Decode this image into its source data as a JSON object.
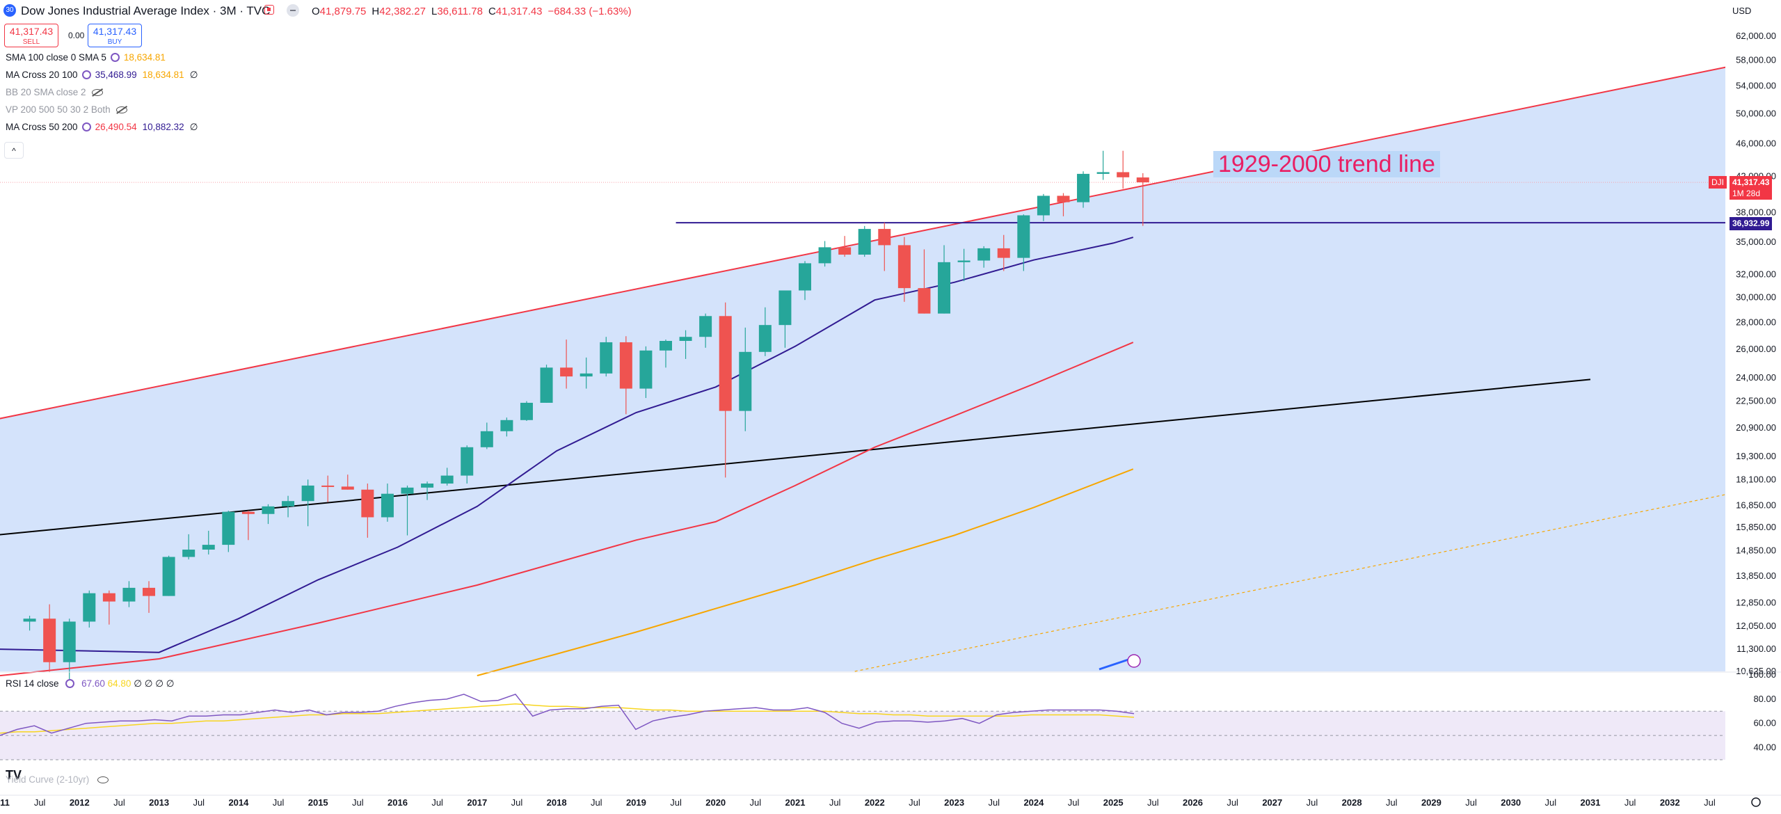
{
  "header": {
    "symbol_badge": "30",
    "title": "Dow Jones Industrial Average Index · 3M · TVC",
    "ohlc": [
      {
        "k": "O",
        "v": "41,879.75"
      },
      {
        "k": "H",
        "v": "42,382.27"
      },
      {
        "k": "L",
        "v": "36,611.78"
      },
      {
        "k": "C",
        "v": "41,317.43"
      },
      {
        "k": "",
        "v": "−684.33 (−1.63%)"
      }
    ],
    "sell_price": "41,317.43",
    "sell_label": "SELL",
    "spread": "0.00",
    "buy_price": "41,317.43",
    "buy_label": "BUY",
    "currency": "USD"
  },
  "indicators": [
    {
      "name": "SMA 100 close 0 SMA 5",
      "values": [
        {
          "v": "18,634.81",
          "c": "#f7a600"
        }
      ],
      "hidden": false
    },
    {
      "name": "MA Cross 20 100",
      "values": [
        {
          "v": "35,468.99",
          "c": "#311b92"
        },
        {
          "v": "18,634.81",
          "c": "#f7a600"
        },
        {
          "v": "∅",
          "c": "#131722"
        }
      ],
      "hidden": false
    },
    {
      "name": "BB 20 SMA close 2",
      "values": [],
      "hidden": true
    },
    {
      "name": "VP 200 500 50 30 2 Both",
      "values": [],
      "hidden": true
    },
    {
      "name": "MA Cross 50 200",
      "values": [
        {
          "v": "26,490.54",
          "c": "#f23645"
        },
        {
          "v": "10,882.32",
          "c": "#311b92"
        },
        {
          "v": "∅",
          "c": "#131722"
        }
      ],
      "hidden": false
    }
  ],
  "collapse_icon": "^",
  "rsi": {
    "label": "RSI 14 close",
    "value": "67.60",
    "ma": "64.80",
    "extra": "∅ ∅ ∅ ∅",
    "axis_labels": [
      "100.00",
      "80.00",
      "60.00",
      "40.00"
    ],
    "series": [
      50,
      55,
      58,
      52,
      56,
      60,
      61,
      62,
      62,
      63,
      62,
      66,
      66,
      67,
      67,
      69,
      71,
      69,
      71,
      67,
      69,
      69,
      70,
      74,
      77,
      79,
      80,
      84,
      78,
      79,
      84,
      66,
      71,
      72,
      72,
      74,
      75,
      55,
      62,
      65,
      67,
      70,
      71,
      72,
      73,
      71,
      71,
      73,
      69,
      60,
      56,
      61,
      62,
      62,
      61,
      62,
      64,
      60,
      67,
      69,
      70,
      71,
      71,
      71,
      71,
      70,
      68
    ],
    "ma_series": [
      52,
      53,
      53,
      54,
      55,
      56,
      57,
      58,
      59,
      60,
      60,
      61,
      62,
      62,
      63,
      64,
      65,
      66,
      67,
      67,
      68,
      68,
      68,
      69,
      70,
      71,
      72,
      73,
      74,
      75,
      76,
      75,
      74,
      74,
      73,
      73,
      73,
      72,
      71,
      71,
      70,
      70,
      70,
      70,
      70,
      70,
      70,
      70,
      70,
      69,
      68,
      68,
      67,
      67,
      66,
      66,
      66,
      66,
      66,
      66,
      67,
      67,
      67,
      67,
      67,
      66,
      65
    ]
  },
  "yield_curve_label": "Yield Curve (2-10yr)",
  "tv_logo": "TV",
  "annotation": "1929-2000 trend line",
  "price_tags": {
    "symbol": "DJI",
    "last": "41,317.43",
    "countdown": "1M 28d",
    "level": "36,932.99"
  },
  "chart_data": {
    "type": "candlestick",
    "title": "Dow Jones Industrial Average Index · 3M · TVC",
    "scale": "log",
    "yticks": [
      "62,000.00",
      "58,000.00",
      "54,000.00",
      "50,000.00",
      "46,000.00",
      "42,000.00",
      "38,000.00",
      "35,000.00",
      "32,000.00",
      "30,000.00",
      "28,000.00",
      "26,000.00",
      "24,000.00",
      "22,500.00",
      "20,900.00",
      "19,300.00",
      "18,100.00",
      "16,850.00",
      "15,850.00",
      "14,850.00",
      "13,850.00",
      "12,850.00",
      "12,050.00",
      "11,300.00",
      "10,625.00"
    ],
    "yrange": [
      10500,
      64000
    ],
    "xticks": [
      {
        "label": "11",
        "date": "2011-01"
      },
      {
        "label": "Jul",
        "date": "2011-07"
      },
      {
        "label": "2012",
        "date": "2012-01"
      },
      {
        "label": "Jul",
        "date": "2012-07"
      },
      {
        "label": "2013",
        "date": "2013-01"
      },
      {
        "label": "Jul",
        "date": "2013-07"
      },
      {
        "label": "2014",
        "date": "2014-01"
      },
      {
        "label": "Jul",
        "date": "2014-07"
      },
      {
        "label": "2015",
        "date": "2015-01"
      },
      {
        "label": "Jul",
        "date": "2015-07"
      },
      {
        "label": "2016",
        "date": "2016-01"
      },
      {
        "label": "Jul",
        "date": "2016-07"
      },
      {
        "label": "2017",
        "date": "2017-01"
      },
      {
        "label": "Jul",
        "date": "2017-07"
      },
      {
        "label": "2018",
        "date": "2018-01"
      },
      {
        "label": "Jul",
        "date": "2018-07"
      },
      {
        "label": "2019",
        "date": "2019-01"
      },
      {
        "label": "Jul",
        "date": "2019-07"
      },
      {
        "label": "2020",
        "date": "2020-01"
      },
      {
        "label": "Jul",
        "date": "2020-07"
      },
      {
        "label": "2021",
        "date": "2021-01"
      },
      {
        "label": "Jul",
        "date": "2021-07"
      },
      {
        "label": "2022",
        "date": "2022-01"
      },
      {
        "label": "Jul",
        "date": "2022-07"
      },
      {
        "label": "2023",
        "date": "2023-01"
      },
      {
        "label": "Jul",
        "date": "2023-07"
      },
      {
        "label": "2024",
        "date": "2024-01"
      },
      {
        "label": "Jul",
        "date": "2024-07"
      },
      {
        "label": "2025",
        "date": "2025-01"
      },
      {
        "label": "Jul",
        "date": "2025-07"
      },
      {
        "label": "2026",
        "date": "2026-01"
      },
      {
        "label": "Jul",
        "date": "2026-07"
      },
      {
        "label": "2027",
        "date": "2027-01"
      },
      {
        "label": "Jul",
        "date": "2027-07"
      },
      {
        "label": "2028",
        "date": "2028-01"
      },
      {
        "label": "Jul",
        "date": "2028-07"
      },
      {
        "label": "2029",
        "date": "2029-01"
      },
      {
        "label": "Jul",
        "date": "2029-07"
      },
      {
        "label": "2030",
        "date": "2030-01"
      },
      {
        "label": "Jul",
        "date": "2030-07"
      },
      {
        "label": "2031",
        "date": "2031-01"
      },
      {
        "label": "Jul",
        "date": "2031-07"
      },
      {
        "label": "2032",
        "date": "2032-01"
      },
      {
        "label": "Jul",
        "date": "2032-07"
      }
    ],
    "candles": [
      {
        "d": "2011-04",
        "o": 12200,
        "h": 12400,
        "l": 11900,
        "c": 12300
      },
      {
        "d": "2011-07",
        "o": 12300,
        "h": 12800,
        "l": 10600,
        "c": 10900
      },
      {
        "d": "2011-10",
        "o": 10900,
        "h": 12300,
        "l": 10400,
        "c": 12200
      },
      {
        "d": "2012-01",
        "o": 12200,
        "h": 13300,
        "l": 12000,
        "c": 13200
      },
      {
        "d": "2012-04",
        "o": 13200,
        "h": 13300,
        "l": 12100,
        "c": 12900
      },
      {
        "d": "2012-07",
        "o": 12900,
        "h": 13650,
        "l": 12700,
        "c": 13400
      },
      {
        "d": "2012-10",
        "o": 13400,
        "h": 13650,
        "l": 12500,
        "c": 13100
      },
      {
        "d": "2013-01",
        "o": 13100,
        "h": 14650,
        "l": 13100,
        "c": 14600
      },
      {
        "d": "2013-04",
        "o": 14600,
        "h": 15550,
        "l": 14500,
        "c": 14900
      },
      {
        "d": "2013-07",
        "o": 14900,
        "h": 15700,
        "l": 14700,
        "c": 15100
      },
      {
        "d": "2013-10",
        "o": 15100,
        "h": 16600,
        "l": 14800,
        "c": 16550
      },
      {
        "d": "2014-01",
        "o": 16550,
        "h": 16600,
        "l": 15300,
        "c": 16450
      },
      {
        "d": "2014-04",
        "o": 16450,
        "h": 16900,
        "l": 16000,
        "c": 16800
      },
      {
        "d": "2014-07",
        "o": 16800,
        "h": 17300,
        "l": 16300,
        "c": 17050
      },
      {
        "d": "2014-10",
        "o": 17050,
        "h": 18100,
        "l": 15900,
        "c": 17800
      },
      {
        "d": "2015-01",
        "o": 17800,
        "h": 18300,
        "l": 17000,
        "c": 17750
      },
      {
        "d": "2015-04",
        "o": 17750,
        "h": 18350,
        "l": 17600,
        "c": 17600
      },
      {
        "d": "2015-07",
        "o": 17600,
        "h": 17900,
        "l": 15400,
        "c": 16300
      },
      {
        "d": "2015-10",
        "o": 16300,
        "h": 17900,
        "l": 16100,
        "c": 17400
      },
      {
        "d": "2016-01",
        "o": 17400,
        "h": 17800,
        "l": 15500,
        "c": 17700
      },
      {
        "d": "2016-04",
        "o": 17700,
        "h": 18000,
        "l": 17100,
        "c": 17900
      },
      {
        "d": "2016-07",
        "o": 17900,
        "h": 18700,
        "l": 17800,
        "c": 18300
      },
      {
        "d": "2016-10",
        "o": 18300,
        "h": 19900,
        "l": 17900,
        "c": 19800
      },
      {
        "d": "2017-01",
        "o": 19800,
        "h": 21200,
        "l": 19700,
        "c": 20700
      },
      {
        "d": "2017-04",
        "o": 20700,
        "h": 21500,
        "l": 20400,
        "c": 21350
      },
      {
        "d": "2017-07",
        "o": 21350,
        "h": 22500,
        "l": 21300,
        "c": 22400
      },
      {
        "d": "2017-10",
        "o": 22400,
        "h": 24900,
        "l": 22400,
        "c": 24700
      },
      {
        "d": "2018-01",
        "o": 24700,
        "h": 26700,
        "l": 23300,
        "c": 24100
      },
      {
        "d": "2018-04",
        "o": 24100,
        "h": 25400,
        "l": 23300,
        "c": 24300
      },
      {
        "d": "2018-07",
        "o": 24300,
        "h": 26900,
        "l": 24100,
        "c": 26500
      },
      {
        "d": "2018-10",
        "o": 26500,
        "h": 26950,
        "l": 21700,
        "c": 23300
      },
      {
        "d": "2019-01",
        "o": 23300,
        "h": 26200,
        "l": 22700,
        "c": 25900
      },
      {
        "d": "2019-04",
        "o": 25900,
        "h": 26700,
        "l": 24700,
        "c": 26600
      },
      {
        "d": "2019-07",
        "o": 26600,
        "h": 27400,
        "l": 25300,
        "c": 26900
      },
      {
        "d": "2019-10",
        "o": 26900,
        "h": 28700,
        "l": 26100,
        "c": 28500
      },
      {
        "d": "2020-01",
        "o": 28500,
        "h": 29600,
        "l": 18200,
        "c": 21900
      },
      {
        "d": "2020-04",
        "o": 21900,
        "h": 27600,
        "l": 20700,
        "c": 25800
      },
      {
        "d": "2020-07",
        "o": 25800,
        "h": 29200,
        "l": 25500,
        "c": 27800
      },
      {
        "d": "2020-10",
        "o": 27800,
        "h": 30600,
        "l": 26100,
        "c": 30600
      },
      {
        "d": "2021-01",
        "o": 30600,
        "h": 33200,
        "l": 29800,
        "c": 33000
      },
      {
        "d": "2021-04",
        "o": 33000,
        "h": 35100,
        "l": 32700,
        "c": 34500
      },
      {
        "d": "2021-07",
        "o": 34500,
        "h": 35600,
        "l": 33600,
        "c": 33800
      },
      {
        "d": "2021-10",
        "o": 33800,
        "h": 36600,
        "l": 33600,
        "c": 36300
      },
      {
        "d": "2022-01",
        "o": 36300,
        "h": 36950,
        "l": 32300,
        "c": 34700
      },
      {
        "d": "2022-04",
        "o": 34700,
        "h": 35500,
        "l": 29650,
        "c": 30800
      },
      {
        "d": "2022-07",
        "o": 30800,
        "h": 34300,
        "l": 28700,
        "c": 28700
      },
      {
        "d": "2022-10",
        "o": 28700,
        "h": 34700,
        "l": 28700,
        "c": 33100
      },
      {
        "d": "2023-01",
        "o": 33100,
        "h": 34350,
        "l": 31400,
        "c": 33250
      },
      {
        "d": "2023-04",
        "o": 33250,
        "h": 34600,
        "l": 32600,
        "c": 34400
      },
      {
        "d": "2023-07",
        "o": 34400,
        "h": 35700,
        "l": 32300,
        "c": 33500
      },
      {
        "d": "2023-10",
        "o": 33500,
        "h": 37800,
        "l": 32300,
        "c": 37700
      },
      {
        "d": "2024-01",
        "o": 37700,
        "h": 40000,
        "l": 37100,
        "c": 39800
      },
      {
        "d": "2024-04",
        "o": 39800,
        "h": 40100,
        "l": 37600,
        "c": 39100
      },
      {
        "d": "2024-07",
        "o": 39100,
        "h": 42600,
        "l": 38500,
        "c": 42300
      },
      {
        "d": "2024-10",
        "o": 42300,
        "h": 45100,
        "l": 41600,
        "c": 42500
      },
      {
        "d": "2025-01",
        "o": 42500,
        "h": 45100,
        "l": 40600,
        "c": 41900
      },
      {
        "d": "2025-04",
        "o": 41879.75,
        "h": 42382.27,
        "l": 36611.78,
        "c": 41317.43
      }
    ],
    "series": [
      {
        "label": "MA Cross 20",
        "color": "#311b92",
        "points": [
          [
            "2011-01",
            11300
          ],
          [
            "2013-01",
            11200
          ],
          [
            "2014-01",
            12300
          ],
          [
            "2015-01",
            13700
          ],
          [
            "2016-01",
            15000
          ],
          [
            "2017-01",
            16800
          ],
          [
            "2018-01",
            19600
          ],
          [
            "2019-01",
            21800
          ],
          [
            "2020-01",
            23400
          ],
          [
            "2021-01",
            26200
          ],
          [
            "2022-01",
            29800
          ],
          [
            "2023-01",
            31300
          ],
          [
            "2024-01",
            33300
          ],
          [
            "2025-01",
            34900
          ],
          [
            "2025-04",
            35468.99
          ]
        ]
      },
      {
        "label": "MA Cross 50 200",
        "color": "#f23645",
        "points": [
          [
            "2011-01",
            10500
          ],
          [
            "2013-01",
            11000
          ],
          [
            "2015-01",
            12150
          ],
          [
            "2017-01",
            13500
          ],
          [
            "2019-01",
            15300
          ],
          [
            "2020-01",
            16100
          ],
          [
            "2021-01",
            17800
          ],
          [
            "2022-01",
            19800
          ],
          [
            "2023-01",
            21600
          ],
          [
            "2024-01",
            23600
          ],
          [
            "2025-04",
            26490.54
          ]
        ]
      },
      {
        "label": "SMA 100",
        "color": "#f7a600",
        "points": [
          [
            "2017-01",
            10500
          ],
          [
            "2018-01",
            11150
          ],
          [
            "2019-01",
            11850
          ],
          [
            "2020-01",
            12650
          ],
          [
            "2021-01",
            13500
          ],
          [
            "2022-01",
            14500
          ],
          [
            "2023-01",
            15500
          ],
          [
            "2024-01",
            16750
          ],
          [
            "2025-04",
            18634.81
          ]
        ]
      }
    ],
    "lines": [
      {
        "label": "1929-2000 trend line",
        "color": "#f23645",
        "from": [
          "2010-01",
          20500
        ],
        "to": [
          "2032-10",
          57000
        ]
      },
      {
        "label": "",
        "color": "#000000",
        "from": [
          "2010-01",
          15200
        ],
        "to": [
          "2031-01",
          23900
        ]
      },
      {
        "label": "",
        "color": "#311b92",
        "from": [
          "2019-07",
          36932.99
        ],
        "to": [
          "2032-10",
          36932.99
        ]
      },
      {
        "label": "",
        "color": "#f7a600",
        "dashed": true,
        "from": [
          "2021-10",
          10625
        ],
        "to": [
          "2032-10",
          17400
        ]
      }
    ]
  }
}
